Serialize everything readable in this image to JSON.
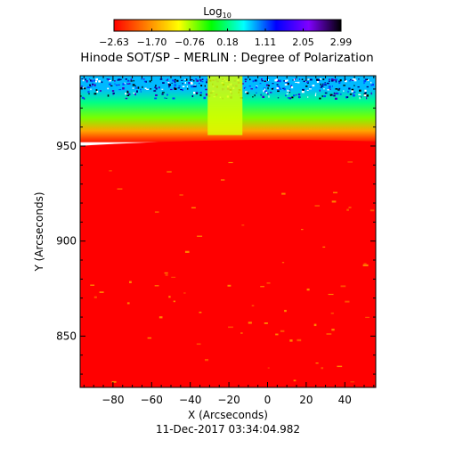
{
  "chart_data": {
    "type": "heatmap",
    "title": "Hinode SOT/SP – MERLIN : Degree of Polarization",
    "xlabel": "X (Arcseconds)",
    "ylabel": "Y (Arcseconds)",
    "timestamp": "11-Dec-2017 03:34:04.982",
    "xlim": [
      -97,
      56
    ],
    "ylim": [
      823,
      987
    ],
    "x_ticks": [
      -80,
      -60,
      -40,
      -20,
      0,
      20,
      40
    ],
    "y_ticks": [
      850,
      900,
      950
    ],
    "colorbar": {
      "title_base": "Log",
      "title_subscript": "10",
      "range": [
        -2.63,
        2.99
      ],
      "tick_labels": [
        "−2.63",
        "−1.70",
        "−0.76",
        "0.18",
        "1.11",
        "2.05",
        "2.99"
      ],
      "colors": [
        "#ff0000",
        "#ff8000",
        "#ffff00",
        "#00ff00",
        "#00ffff",
        "#0000ff",
        "#8000ff",
        "#000000"
      ]
    },
    "field": {
      "limb_y": 952,
      "disk_value": -2.63,
      "offlimb_gradient": [
        {
          "y": 952,
          "value": -2.5
        },
        {
          "y": 958,
          "value": -1.6
        },
        {
          "y": 965,
          "value": -0.6
        },
        {
          "y": 973,
          "value": 0.2
        },
        {
          "y": 980,
          "value": 0.8
        }
      ],
      "bright_column_x": [
        -31,
        -13
      ]
    }
  }
}
